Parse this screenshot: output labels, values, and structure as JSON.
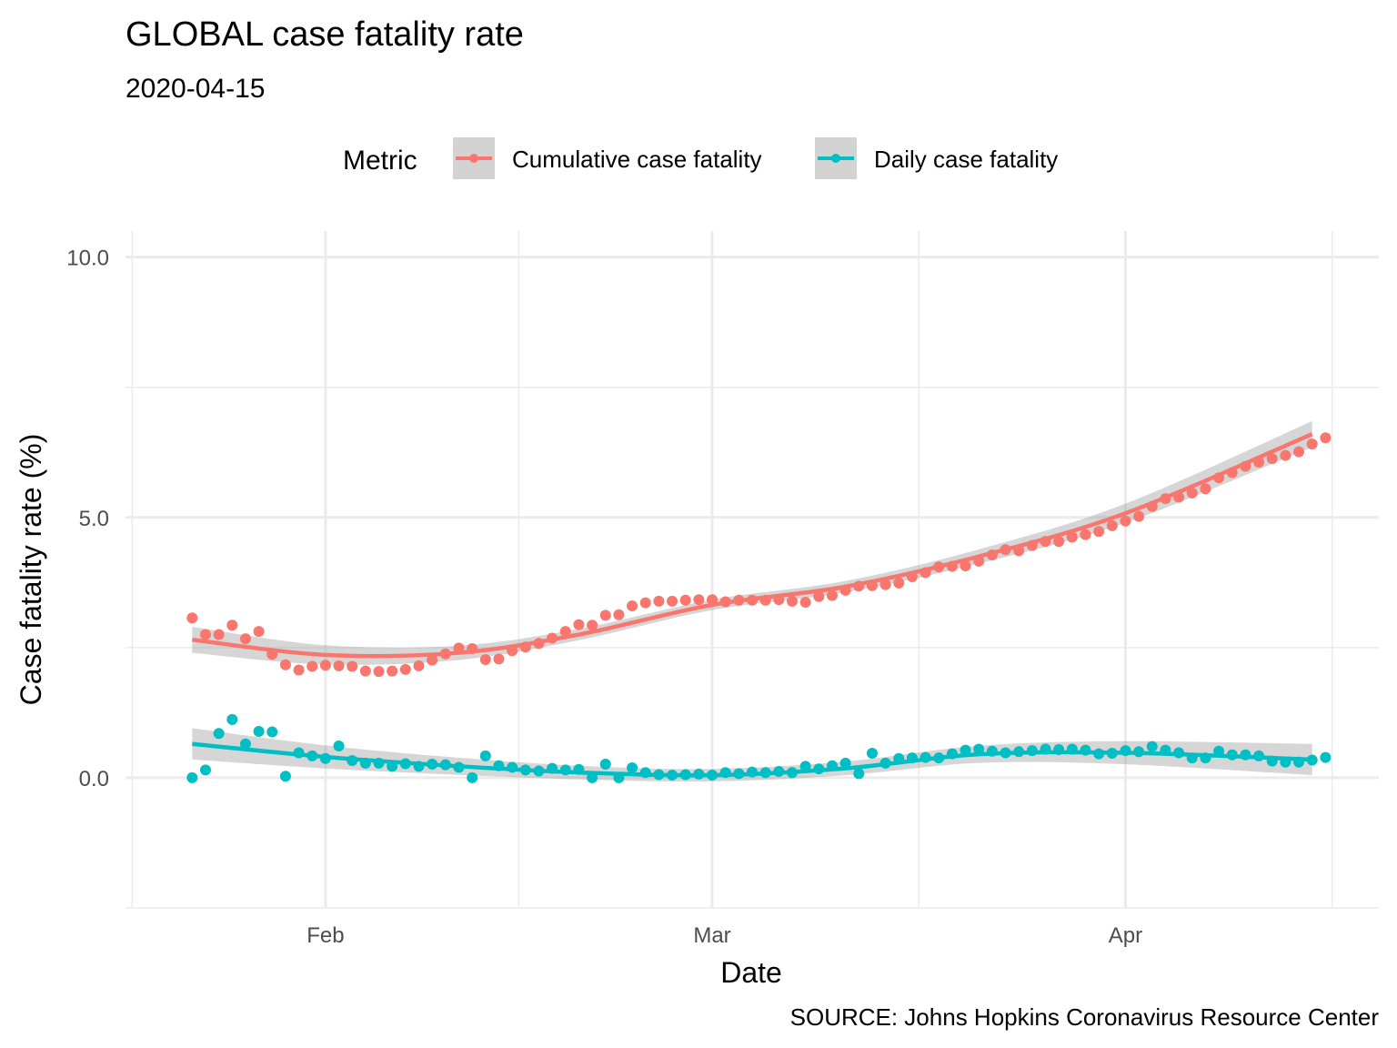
{
  "chart_data": {
    "type": "scatter",
    "title": "GLOBAL case fatality rate",
    "subtitle": "2020-04-15",
    "xlabel": "Date",
    "ylabel": "Case fatality rate (%)",
    "caption": "SOURCE: Johns Hopkins Coronavirus Resource Center",
    "legend": {
      "title": "Metric",
      "position": "top"
    },
    "x_ticks": [
      {
        "label": "Feb",
        "date": "2020-02-01"
      },
      {
        "label": "Mar",
        "date": "2020-03-01"
      },
      {
        "label": "Apr",
        "date": "2020-04-01"
      }
    ],
    "y_ticks": [
      {
        "label": "0.0",
        "value": 0
      },
      {
        "label": "5.0",
        "value": 5
      },
      {
        "label": "10.0",
        "value": 10
      }
    ],
    "xlim": [
      "2020-01-17",
      "2020-04-20"
    ],
    "ylim": [
      -2.5,
      10.5
    ],
    "grid": true,
    "smoothing": "loess with confidence band",
    "series": [
      {
        "name": "Cumulative case fatality",
        "color": "#F8766D",
        "x_start": "2020-01-22",
        "values": [
          3.07,
          2.75,
          2.75,
          2.93,
          2.67,
          2.81,
          2.37,
          2.17,
          2.07,
          2.14,
          2.16,
          2.15,
          2.14,
          2.05,
          2.04,
          2.05,
          2.08,
          2.15,
          2.26,
          2.38,
          2.49,
          2.48,
          2.27,
          2.28,
          2.44,
          2.51,
          2.58,
          2.68,
          2.81,
          2.94,
          2.93,
          3.12,
          3.13,
          3.3,
          3.36,
          3.39,
          3.39,
          3.41,
          3.42,
          3.42,
          3.38,
          3.41,
          3.41,
          3.41,
          3.42,
          3.39,
          3.37,
          3.48,
          3.5,
          3.6,
          3.68,
          3.69,
          3.71,
          3.74,
          3.86,
          3.94,
          4.05,
          4.06,
          4.07,
          4.16,
          4.28,
          4.38,
          4.36,
          4.46,
          4.54,
          4.54,
          4.62,
          4.67,
          4.73,
          4.84,
          4.93,
          5.02,
          5.21,
          5.36,
          5.39,
          5.47,
          5.55,
          5.76,
          5.86,
          5.98,
          6.06,
          6.13,
          6.19,
          6.26,
          6.41,
          6.53
        ]
      },
      {
        "name": "Daily case fatality",
        "color": "#00BFC4",
        "x_start": "2020-01-22",
        "values": [
          0.0,
          0.15,
          0.85,
          1.12,
          0.65,
          0.89,
          0.88,
          0.03,
          0.48,
          0.42,
          0.37,
          0.61,
          0.33,
          0.28,
          0.28,
          0.22,
          0.27,
          0.22,
          0.26,
          0.25,
          0.2,
          0.0,
          0.42,
          0.23,
          0.2,
          0.15,
          0.13,
          0.18,
          0.15,
          0.16,
          0.0,
          0.26,
          0.0,
          0.19,
          0.1,
          0.06,
          0.05,
          0.06,
          0.07,
          0.05,
          0.1,
          0.08,
          0.11,
          0.1,
          0.12,
          0.1,
          0.22,
          0.17,
          0.23,
          0.28,
          0.08,
          0.47,
          0.28,
          0.37,
          0.38,
          0.39,
          0.38,
          0.46,
          0.53,
          0.55,
          0.51,
          0.48,
          0.5,
          0.52,
          0.55,
          0.54,
          0.55,
          0.53,
          0.46,
          0.47,
          0.52,
          0.5,
          0.6,
          0.53,
          0.48,
          0.38,
          0.38,
          0.51,
          0.44,
          0.44,
          0.42,
          0.32,
          0.3,
          0.3,
          0.34,
          0.39
        ]
      }
    ],
    "smooth": [
      {
        "name": "Cumulative case fatality",
        "x": [
          "2020-01-22",
          "2020-02-01",
          "2020-02-11",
          "2020-02-20",
          "2020-03-01",
          "2020-03-11",
          "2020-03-21",
          "2020-04-01",
          "2020-04-15"
        ],
        "y": [
          2.65,
          2.36,
          2.4,
          2.75,
          3.32,
          3.67,
          4.25,
          5.08,
          6.6
        ],
        "band": 0.1
      },
      {
        "name": "Daily case fatality",
        "x": [
          "2020-01-22",
          "2020-02-01",
          "2020-02-11",
          "2020-02-20",
          "2020-03-01",
          "2020-03-11",
          "2020-03-21",
          "2020-04-01",
          "2020-04-15"
        ],
        "y": [
          0.65,
          0.4,
          0.22,
          0.1,
          0.05,
          0.18,
          0.45,
          0.48,
          0.35
        ],
        "band": 0.12
      }
    ]
  }
}
